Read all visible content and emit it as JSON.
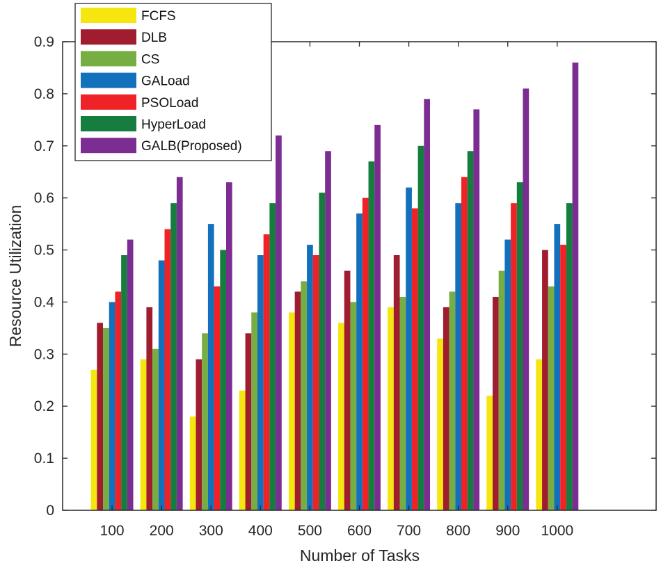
{
  "chart_data": {
    "type": "bar",
    "title": "",
    "xlabel": "Number of Tasks",
    "ylabel": "Resource Utilization",
    "categories": [
      "100",
      "200",
      "300",
      "400",
      "500",
      "600",
      "700",
      "800",
      "900",
      "1000"
    ],
    "ylim": [
      0,
      0.9
    ],
    "yticks": [
      "0",
      "0.1",
      "0.2",
      "0.3",
      "0.4",
      "0.5",
      "0.6",
      "0.7",
      "0.8",
      "0.9"
    ],
    "xlim_categories": 12,
    "grid": false,
    "legend_position": "upper-left",
    "series": [
      {
        "name": "FCFS",
        "color": "#F5E60F",
        "values": [
          0.27,
          0.29,
          0.18,
          0.23,
          0.38,
          0.36,
          0.39,
          0.33,
          0.22,
          0.29
        ]
      },
      {
        "name": "DLB",
        "color": "#A01C2F",
        "values": [
          0.36,
          0.39,
          0.29,
          0.34,
          0.42,
          0.46,
          0.49,
          0.39,
          0.41,
          0.5
        ]
      },
      {
        "name": "CS",
        "color": "#76AE44",
        "values": [
          0.35,
          0.31,
          0.34,
          0.38,
          0.44,
          0.4,
          0.41,
          0.42,
          0.46,
          0.43
        ]
      },
      {
        "name": "GALoad",
        "color": "#1270BD",
        "values": [
          0.4,
          0.48,
          0.55,
          0.49,
          0.51,
          0.57,
          0.62,
          0.59,
          0.52,
          0.55
        ]
      },
      {
        "name": "PSOLoad",
        "color": "#EE2227",
        "values": [
          0.42,
          0.54,
          0.43,
          0.53,
          0.49,
          0.6,
          0.58,
          0.64,
          0.59,
          0.51
        ]
      },
      {
        "name": "HyperLoad",
        "color": "#157E3E",
        "values": [
          0.49,
          0.59,
          0.5,
          0.59,
          0.61,
          0.67,
          0.7,
          0.69,
          0.63,
          0.59
        ]
      },
      {
        "name": "GALB(Proposed)",
        "color": "#7B2D91",
        "values": [
          0.52,
          0.64,
          0.63,
          0.72,
          0.69,
          0.74,
          0.79,
          0.77,
          0.81,
          0.86
        ]
      }
    ]
  },
  "legend": {
    "items": [
      "FCFS",
      "DLB",
      "CS",
      "GALoad",
      "PSOLoad",
      "HyperLoad",
      "GALB(Proposed)"
    ]
  }
}
